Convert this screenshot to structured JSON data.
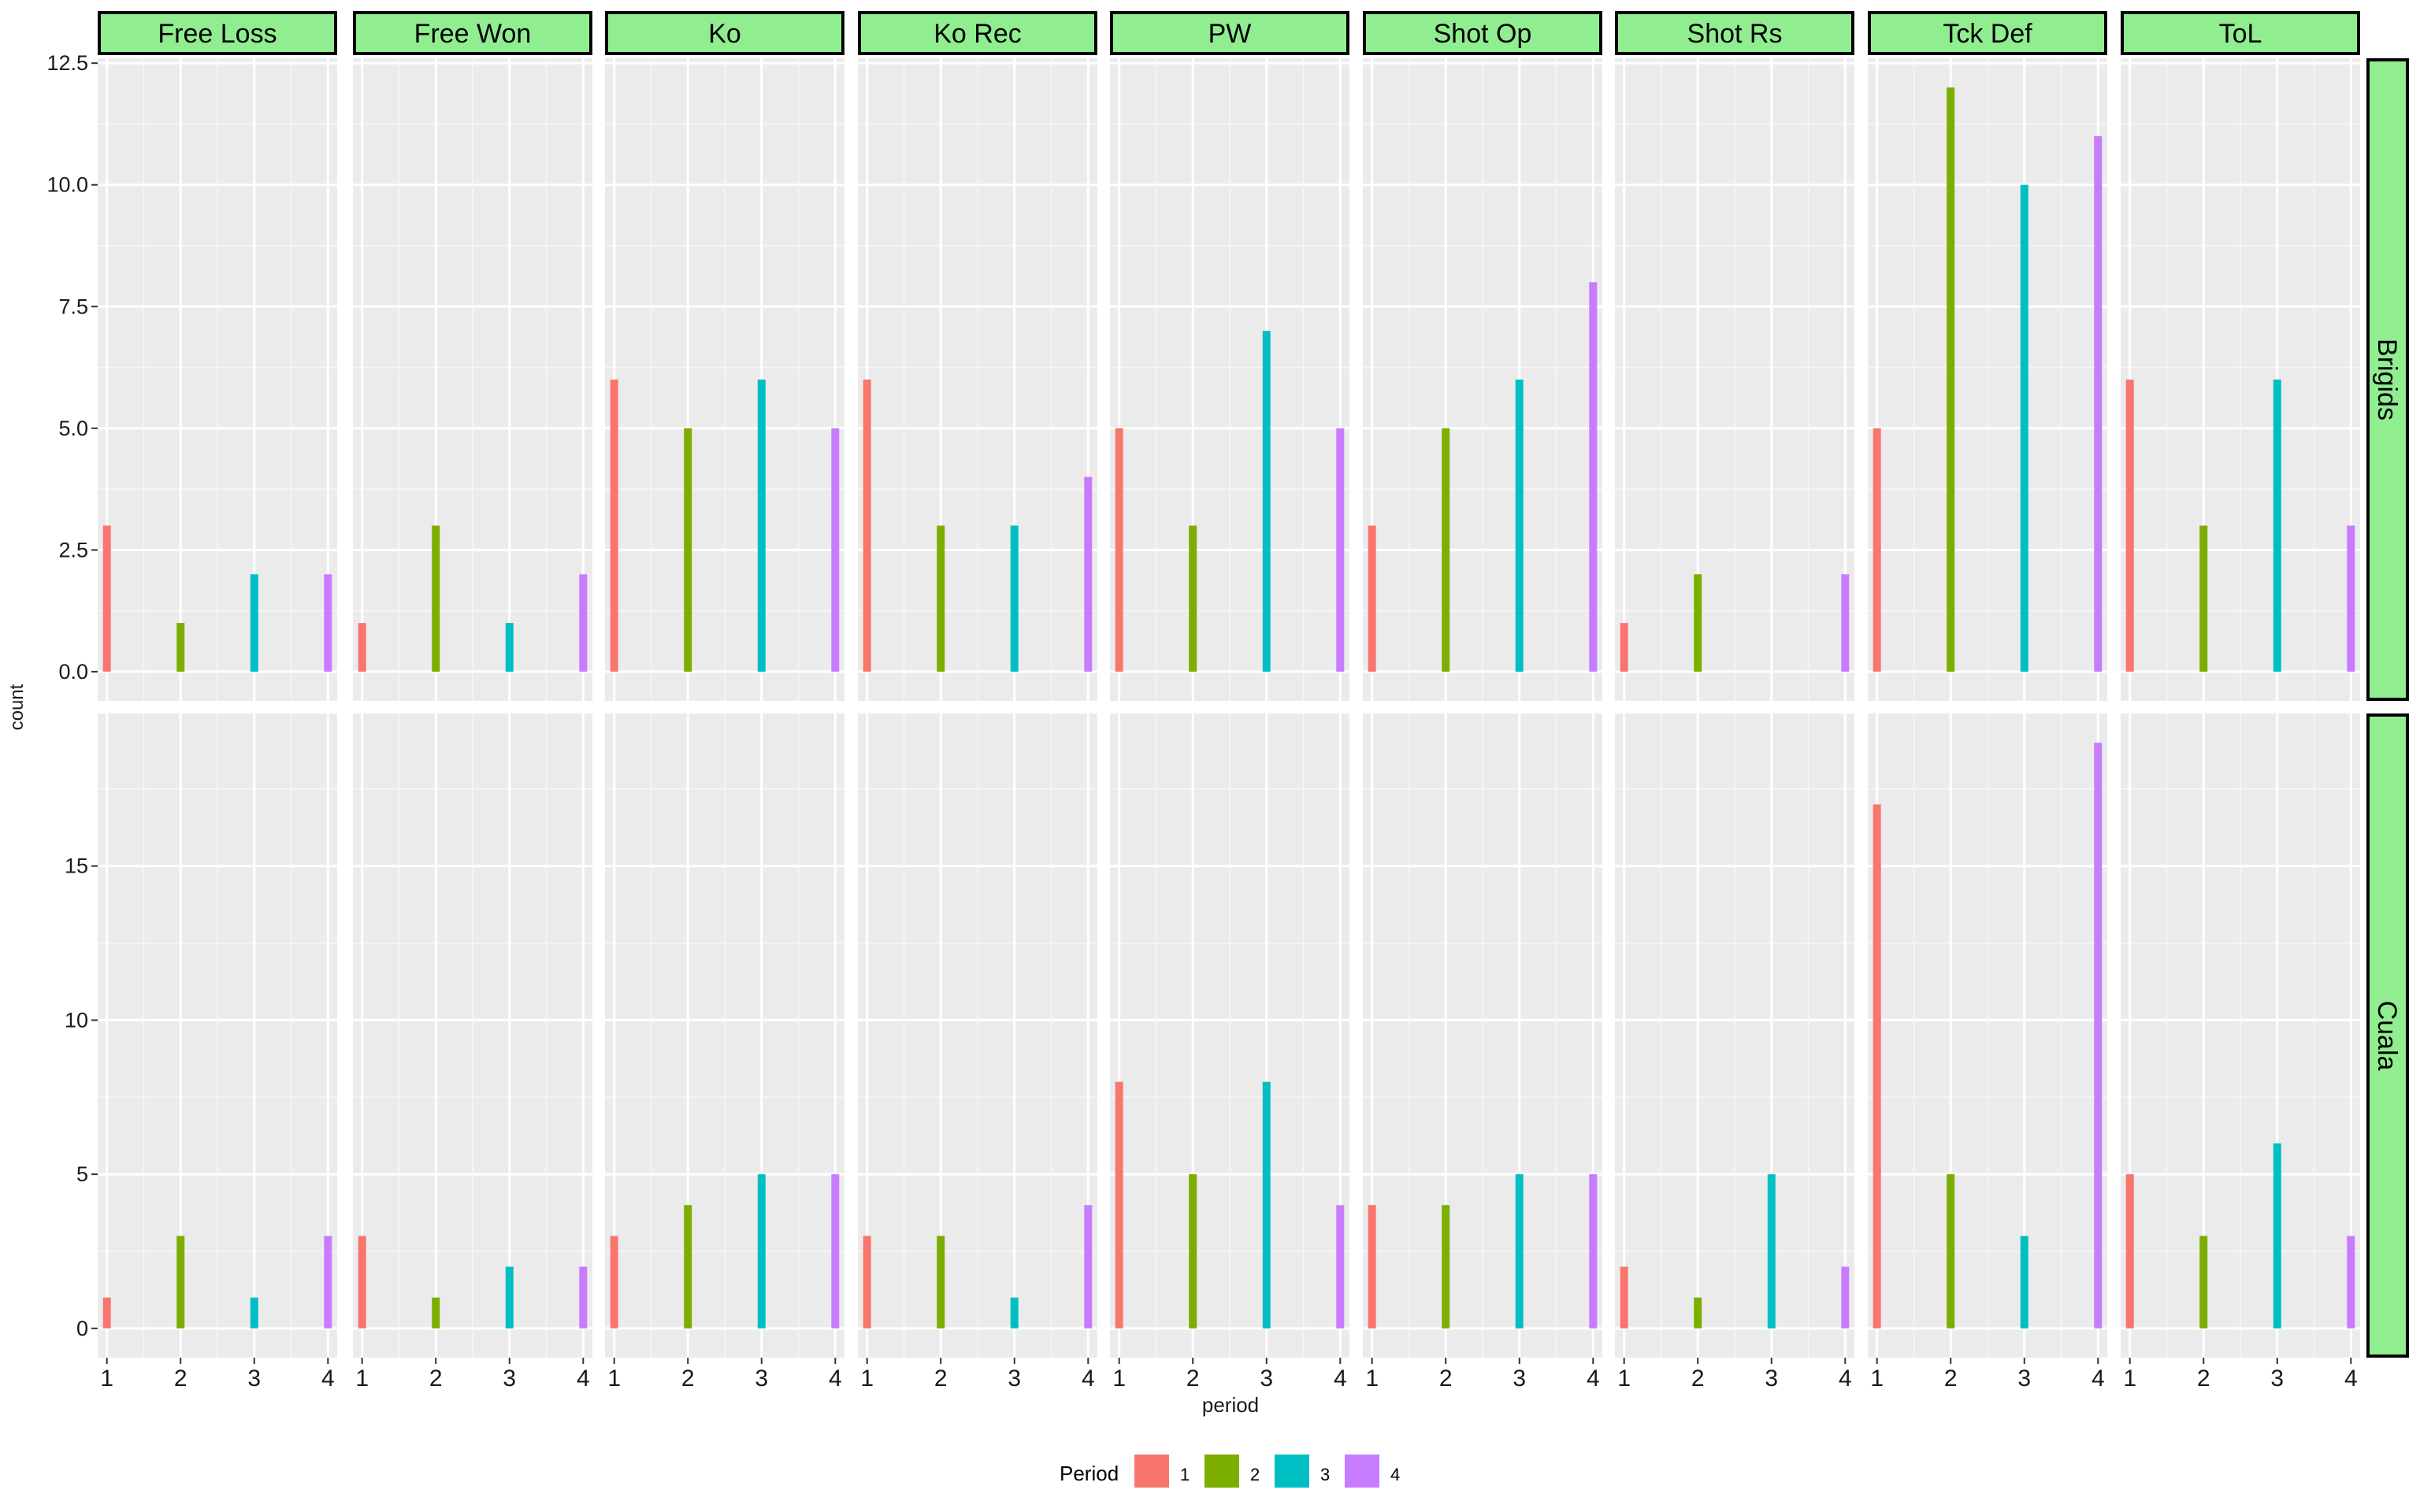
{
  "chart_data": {
    "type": "bar",
    "facet_columns": [
      "Free Loss",
      "Free Won",
      "Ko",
      "Ko Rec",
      "PW",
      "Shot Op",
      "Shot Rs",
      "Tck Def",
      "ToL"
    ],
    "facet_rows": [
      "Brigids",
      "Cuala"
    ],
    "x_categories": [
      "1",
      "2",
      "3",
      "4"
    ],
    "xlabel": "period",
    "ylabel": "count",
    "legend": {
      "title": "Period",
      "position": "bottom",
      "items": [
        {
          "label": "1",
          "color": "#F8766D"
        },
        {
          "label": "2",
          "color": "#7CAE00"
        },
        {
          "label": "3",
          "color": "#00BFC4"
        },
        {
          "label": "4",
          "color": "#C77CFF"
        }
      ]
    },
    "strip_color": "#90EE90",
    "panel_background": "#EBEBEB",
    "grid": true,
    "rows": [
      {
        "name": "Brigids",
        "ylim": [
          -0.6,
          12.6
        ],
        "y_ticks": [
          0,
          2.5,
          5,
          7.5,
          10,
          12.5
        ],
        "y_tick_labels": [
          "0.0",
          "2.5",
          "5.0",
          "7.5",
          "10.0",
          "12.5"
        ],
        "series": {
          "Free Loss": [
            3,
            1,
            2,
            2
          ],
          "Free Won": [
            1,
            3,
            1,
            2
          ],
          "Ko": [
            6,
            5,
            6,
            5
          ],
          "Ko Rec": [
            6,
            3,
            3,
            4
          ],
          "PW": [
            5,
            3,
            7,
            5
          ],
          "Shot Op": [
            3,
            5,
            6,
            8
          ],
          "Shot Rs": [
            1,
            2,
            0,
            2
          ],
          "Tck Def": [
            5,
            12,
            10,
            11
          ],
          "ToL": [
            6,
            3,
            6,
            3
          ]
        }
      },
      {
        "name": "Cuala",
        "ylim": [
          -0.95,
          19.95
        ],
        "y_ticks": [
          0,
          5,
          10,
          15
        ],
        "y_tick_labels": [
          "0",
          "5",
          "10",
          "15"
        ],
        "series": {
          "Free Loss": [
            1,
            3,
            1,
            3
          ],
          "Free Won": [
            3,
            1,
            2,
            2
          ],
          "Ko": [
            3,
            4,
            5,
            5
          ],
          "Ko Rec": [
            3,
            3,
            1,
            4
          ],
          "PW": [
            8,
            5,
            8,
            4
          ],
          "Shot Op": [
            4,
            4,
            5,
            5
          ],
          "Shot Rs": [
            2,
            1,
            5,
            2
          ],
          "Tck Def": [
            17,
            5,
            3,
            19
          ],
          "ToL": [
            5,
            3,
            6,
            3
          ]
        }
      }
    ]
  }
}
